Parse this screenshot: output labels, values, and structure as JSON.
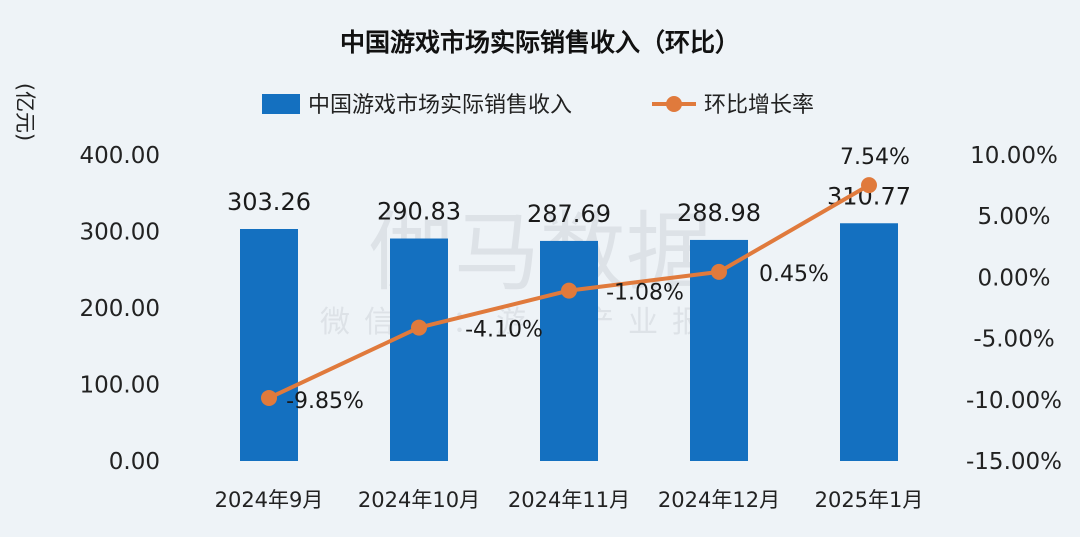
{
  "chart_data": {
    "type": "bar",
    "title": "中国游戏市场实际销售收入（环比）",
    "y_unit_label": "(亿元)",
    "categories": [
      "2024年9月",
      "2024年10月",
      "2024年11月",
      "2024年12月",
      "2025年1月"
    ],
    "series": [
      {
        "name": "中国游戏市场实际销售收入",
        "type": "bar",
        "axis": "left",
        "color": "#1470c0",
        "values": [
          303.26,
          290.83,
          287.69,
          288.98,
          310.77
        ],
        "labels": [
          "303.26",
          "290.83",
          "287.69",
          "288.98",
          "310.77"
        ]
      },
      {
        "name": "环比增长率",
        "type": "line",
        "axis": "right",
        "color": "#e07a3c",
        "values": [
          -9.85,
          -4.1,
          -1.08,
          0.45,
          7.54
        ],
        "labels": [
          "-9.85%",
          "-4.10%",
          "-1.08%",
          "0.45%",
          "7.54%"
        ]
      }
    ],
    "y_left": {
      "range": [
        0,
        400
      ],
      "ticks": [
        0,
        100,
        200,
        300,
        400
      ],
      "tick_labels": [
        "0.00",
        "100.00",
        "200.00",
        "300.00",
        "400.00"
      ]
    },
    "y_right": {
      "range": [
        -15,
        10
      ],
      "ticks": [
        -15,
        -10,
        -5,
        0,
        5,
        10
      ],
      "tick_labels": [
        "-15.00%",
        "-10.00%",
        "-5.00%",
        "0.00%",
        "5.00%",
        "10.00%"
      ]
    },
    "legend_position": "top-center",
    "grid": false
  },
  "watermark": {
    "main": "伽马数据",
    "sub": "微信号：游戏产业报告"
  }
}
